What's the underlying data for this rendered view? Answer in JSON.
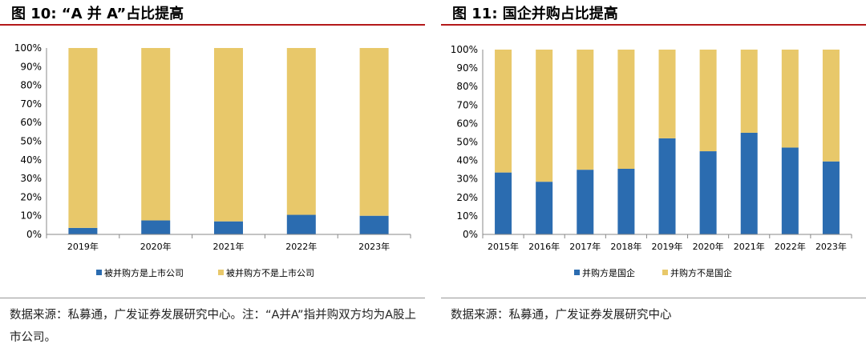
{
  "figures": [
    {
      "title": "图 10:   “A 并 A”占比提高",
      "source": "数据来源：私募通，广发证券发展研究中心。注：“A并A”指并购双方均为A股上市公司。"
    },
    {
      "title": "图 11:   国企并购占比提高",
      "source": "数据来源：私募通，广发证券发展研究中心"
    }
  ],
  "chart_data": [
    {
      "type": "bar",
      "stacked": true,
      "percent": true,
      "categories": [
        "2019年",
        "2020年",
        "2021年",
        "2022年",
        "2023年"
      ],
      "series": [
        {
          "name": "被并购方是上市公司",
          "values": [
            3.5,
            7.5,
            7,
            10.5,
            10
          ],
          "color": "#2b6cb0"
        },
        {
          "name": "被并购方不是上市公司",
          "values": [
            96.5,
            92.5,
            93,
            89.5,
            90
          ],
          "color": "#e8c86a"
        }
      ],
      "ylim": [
        0,
        100
      ],
      "yticks": [
        "0%",
        "10%",
        "20%",
        "30%",
        "40%",
        "50%",
        "60%",
        "70%",
        "80%",
        "90%",
        "100%"
      ],
      "legend": "bottom",
      "grid": false
    },
    {
      "type": "bar",
      "stacked": true,
      "percent": true,
      "categories": [
        "2015年",
        "2016年",
        "2017年",
        "2018年",
        "2019年",
        "2020年",
        "2021年",
        "2022年",
        "2023年"
      ],
      "series": [
        {
          "name": "并购方是国企",
          "values": [
            33.5,
            28.5,
            35,
            35.5,
            52,
            45,
            55,
            47,
            39.5
          ],
          "color": "#2b6cb0"
        },
        {
          "name": "并购方不是国企",
          "values": [
            66.5,
            71.5,
            65,
            64.5,
            48,
            55,
            45,
            53,
            60.5
          ],
          "color": "#e8c86a"
        }
      ],
      "ylim": [
        0,
        100
      ],
      "yticks": [
        "0%",
        "10%",
        "20%",
        "30%",
        "40%",
        "50%",
        "60%",
        "70%",
        "80%",
        "90%",
        "100%"
      ],
      "legend": "bottom",
      "grid": false
    }
  ]
}
